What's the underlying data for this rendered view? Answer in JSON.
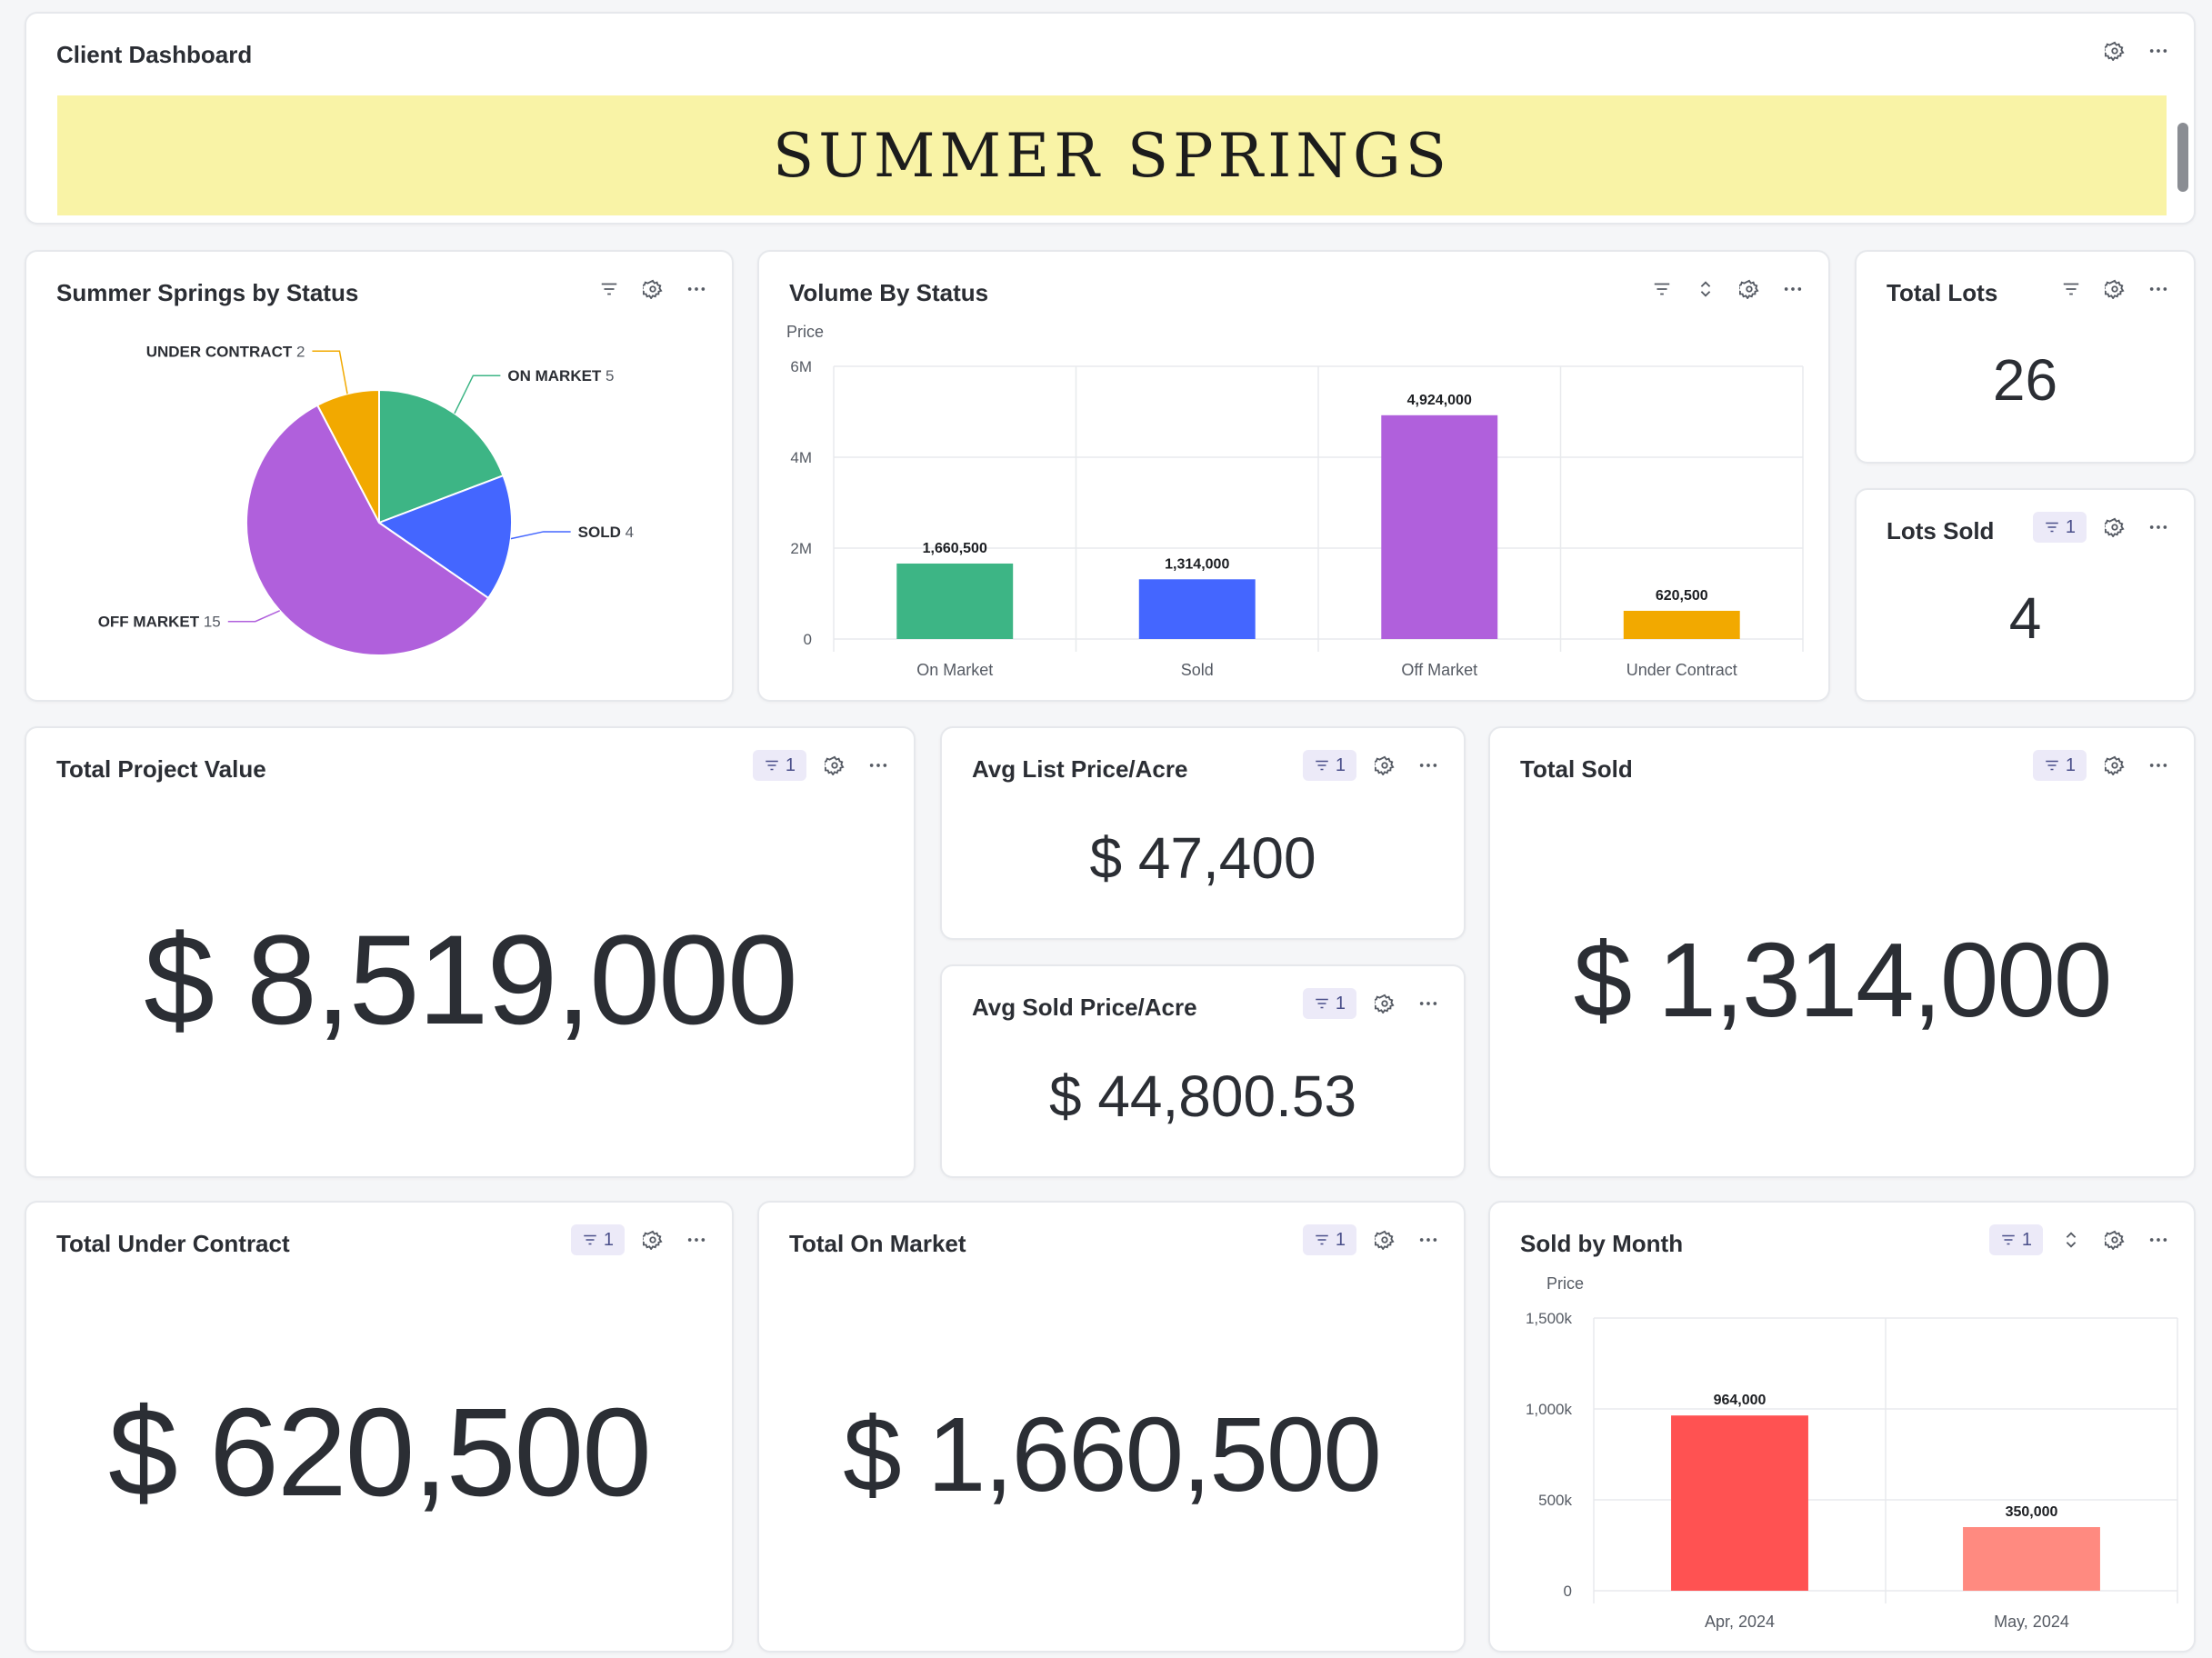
{
  "header": {
    "title": "Client Dashboard",
    "banner_text": "SUMMER SPRINGS"
  },
  "status_pie": {
    "title": "Summer Springs by Status",
    "chart_data": {
      "type": "pie",
      "slices": [
        {
          "label": "ON MARKET",
          "value": 5,
          "color": "#3db585"
        },
        {
          "label": "SOLD",
          "value": 4,
          "color": "#4466ff"
        },
        {
          "label": "OFF MARKET",
          "value": 15,
          "color": "#b060dc"
        },
        {
          "label": "UNDER CONTRACT",
          "value": 2,
          "color": "#f2a900"
        }
      ]
    }
  },
  "volume_by_status": {
    "title": "Volume By Status",
    "chart_data": {
      "type": "bar",
      "ylabel": "Price",
      "ylim": [
        0,
        6000000
      ],
      "yticks": [
        "0",
        "2M",
        "4M",
        "6M"
      ],
      "ytick_values": [
        0,
        2000000,
        4000000,
        6000000
      ],
      "categories": [
        "On Market",
        "Sold",
        "Off Market",
        "Under Contract"
      ],
      "values": [
        1660500,
        1314000,
        4924000,
        620500
      ],
      "value_labels": [
        "1,660,500",
        "1,314,000",
        "4,924,000",
        "620,500"
      ],
      "colors": [
        "#3db585",
        "#4466ff",
        "#b060dc",
        "#f2a900"
      ]
    }
  },
  "total_lots": {
    "title": "Total Lots",
    "value": "26"
  },
  "lots_sold": {
    "title": "Lots Sold",
    "value": "4",
    "filter_count": "1"
  },
  "total_project_value": {
    "title": "Total Project Value",
    "value": "$ 8,519,000",
    "filter_count": "1"
  },
  "avg_list_price": {
    "title": "Avg List Price/Acre",
    "value": "$ 47,400",
    "filter_count": "1"
  },
  "avg_sold_price": {
    "title": "Avg Sold Price/Acre",
    "value": "$ 44,800.53",
    "filter_count": "1"
  },
  "total_sold": {
    "title": "Total Sold",
    "value": "$ 1,314,000",
    "filter_count": "1"
  },
  "total_under_contract": {
    "title": "Total Under Contract",
    "value": "$ 620,500",
    "filter_count": "1"
  },
  "total_on_market": {
    "title": "Total On Market",
    "value": "$ 1,660,500",
    "filter_count": "1"
  },
  "sold_by_month": {
    "title": "Sold by Month",
    "filter_count": "1",
    "chart_data": {
      "type": "bar",
      "ylabel": "Price",
      "ylim": [
        0,
        1500000
      ],
      "yticks": [
        "0",
        "500k",
        "1,000k",
        "1,500k"
      ],
      "ytick_values": [
        0,
        500000,
        1000000,
        1500000
      ],
      "categories": [
        "Apr, 2024",
        "May, 2024"
      ],
      "values": [
        964000,
        350000
      ],
      "value_labels": [
        "964,000",
        "350,000"
      ],
      "colors": [
        "#ff5252",
        "#ff8a80"
      ]
    }
  }
}
